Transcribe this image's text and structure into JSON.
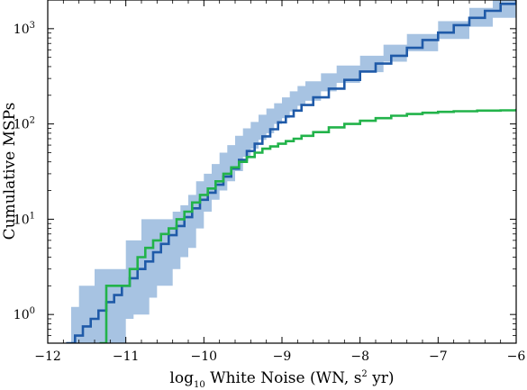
{
  "chart_data": {
    "type": "line",
    "xlabel": {
      "prefix": "log",
      "sub": "10",
      "middle": " White Noise (WN, s",
      "sup": "2",
      "suffix": " yr)"
    },
    "ylabel": "Cumulative MSPs",
    "xlim": [
      -12,
      -6
    ],
    "ylim": [
      0.5,
      2000
    ],
    "yscale": "log",
    "grid": false,
    "x_ticks": [
      -12,
      -11,
      -10,
      -9,
      -8,
      -7,
      -6
    ],
    "x_tick_labels": [
      "−12",
      "−11",
      "−10",
      "−9",
      "−8",
      "−7",
      "−6"
    ],
    "y_ticks": [
      1,
      10,
      100,
      1000
    ],
    "y_tick_labels": [
      {
        "base": "10",
        "exp": "0"
      },
      {
        "base": "10",
        "exp": "1"
      },
      {
        "base": "10",
        "exp": "2"
      },
      {
        "base": "10",
        "exp": "3"
      }
    ],
    "series": [
      {
        "kind": "band",
        "color": "#a7c3e2",
        "x": [
          -11.7,
          -11.6,
          -11.5,
          -11.4,
          -11.3,
          -11.2,
          -11.1,
          -11.0,
          -10.9,
          -10.8,
          -10.7,
          -10.6,
          -10.5,
          -10.4,
          -10.3,
          -10.2,
          -10.1,
          -10.0,
          -9.9,
          -9.8,
          -9.7,
          -9.6,
          -9.5,
          -9.4,
          -9.3,
          -9.2,
          -9.1,
          -9.0,
          -8.9,
          -8.8,
          -8.7,
          -8.5,
          -8.3,
          -8.0,
          -7.7,
          -7.4,
          -7.0,
          -6.6,
          -6.3,
          -6.0
        ],
        "lower": [
          0.5,
          0.5,
          0.5,
          0.5,
          0.5,
          0.5,
          0.5,
          0.9,
          1.0,
          1.0,
          1.5,
          2.0,
          2.0,
          3.0,
          4.0,
          5.0,
          8.0,
          12,
          16,
          20,
          25,
          32,
          45,
          55,
          68,
          80,
          100,
          115,
          135,
          155,
          175,
          220,
          270,
          350,
          450,
          580,
          780,
          1050,
          1300,
          1600
        ],
        "upper": [
          1.2,
          2.0,
          2.0,
          3.0,
          3.0,
          3.0,
          3.0,
          6.0,
          6.0,
          10,
          10,
          10,
          10,
          12,
          14,
          18,
          25,
          30,
          38,
          50,
          60,
          75,
          90,
          105,
          125,
          145,
          165,
          190,
          220,
          250,
          280,
          340,
          410,
          520,
          680,
          880,
          1200,
          1650,
          2000,
          2400
        ]
      },
      {
        "kind": "step",
        "color": "#1f5aa8",
        "x": [
          -11.75,
          -11.65,
          -11.55,
          -11.45,
          -11.35,
          -11.25,
          -11.15,
          -11.05,
          -10.95,
          -10.85,
          -10.75,
          -10.65,
          -10.55,
          -10.45,
          -10.35,
          -10.25,
          -10.15,
          -10.05,
          -9.95,
          -9.85,
          -9.75,
          -9.65,
          -9.55,
          -9.45,
          -9.35,
          -9.25,
          -9.15,
          -9.05,
          -8.95,
          -8.85,
          -8.75,
          -8.6,
          -8.4,
          -8.2,
          -8.0,
          -7.8,
          -7.6,
          -7.4,
          -7.2,
          -7.0,
          -6.8,
          -6.6,
          -6.4,
          -6.2,
          -6.0
        ],
        "y": [
          0.5,
          0.6,
          0.75,
          0.9,
          1.1,
          1.35,
          1.6,
          2.0,
          2.4,
          3.0,
          3.6,
          4.5,
          5.5,
          6.8,
          8.5,
          10.5,
          13,
          16,
          19,
          23,
          28,
          34,
          42,
          52,
          62,
          74,
          88,
          104,
          120,
          138,
          158,
          190,
          235,
          290,
          355,
          430,
          520,
          630,
          760,
          910,
          1090,
          1300,
          1540,
          1820,
          2100
        ]
      },
      {
        "kind": "step",
        "color": "#22b34a",
        "x": [
          -11.32,
          -11.25,
          -11.05,
          -10.95,
          -10.85,
          -10.75,
          -10.65,
          -10.55,
          -10.45,
          -10.35,
          -10.25,
          -10.15,
          -10.05,
          -9.95,
          -9.85,
          -9.75,
          -9.65,
          -9.55,
          -9.45,
          -9.35,
          -9.25,
          -9.15,
          -9.05,
          -8.95,
          -8.85,
          -8.75,
          -8.6,
          -8.4,
          -8.2,
          -8.0,
          -7.8,
          -7.6,
          -7.4,
          -7.2,
          -7.0,
          -6.8,
          -6.5,
          -6.2,
          -6.0
        ],
        "y": [
          0.5,
          2.0,
          2.0,
          3.0,
          4.0,
          5.0,
          6.0,
          7.0,
          8.0,
          10.0,
          12,
          15,
          18,
          21,
          25,
          30,
          35,
          40,
          45,
          50,
          55,
          58,
          62,
          66,
          70,
          75,
          82,
          92,
          100,
          108,
          115,
          122,
          127,
          131,
          134,
          136,
          138,
          139,
          140
        ]
      }
    ]
  }
}
